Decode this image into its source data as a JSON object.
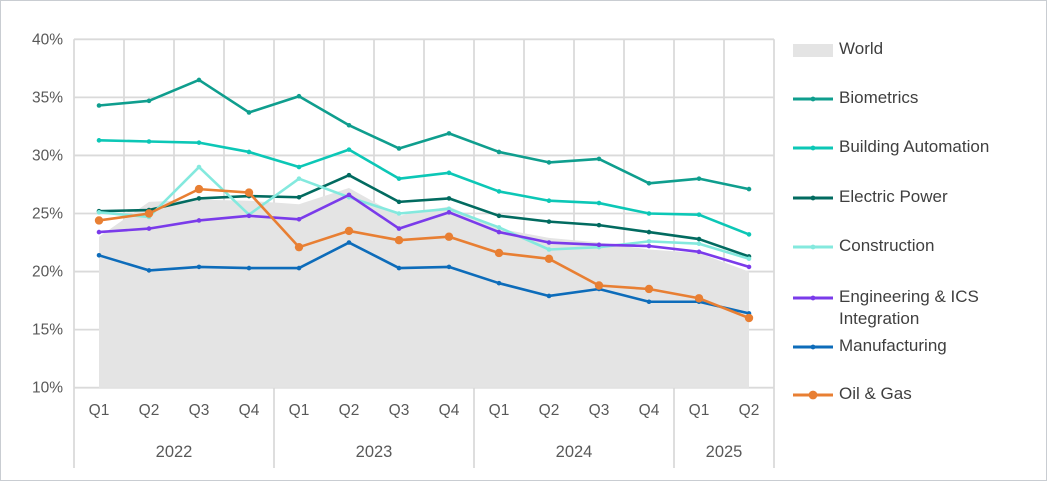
{
  "frame": {
    "background": "#ffffff",
    "border_color": "#c9cdd2"
  },
  "colors": {
    "grid": "#dadada",
    "axis_text": "#595959",
    "legend_text": "#3f3f3f",
    "world_fill": "#e4e4e4"
  },
  "chart_data": {
    "type": "line",
    "title": "",
    "legend_position": "right",
    "grid": true,
    "y_axis": {
      "min": 10,
      "max": 40,
      "step": 5,
      "tick_suffix": "%",
      "tick_labels": [
        "40%",
        "35%",
        "30%",
        "25%",
        "20%",
        "15%",
        "10%"
      ]
    },
    "x_axis": {
      "quarter_labels": [
        "Q1",
        "Q2",
        "Q3",
        "Q4",
        "Q1",
        "Q2",
        "Q3",
        "Q4",
        "Q1",
        "Q2",
        "Q3",
        "Q4",
        "Q1",
        "Q2"
      ],
      "year_groups": [
        {
          "label": "2022",
          "quarters": 4
        },
        {
          "label": "2023",
          "quarters": 4
        },
        {
          "label": "2024",
          "quarters": 4
        },
        {
          "label": "2025",
          "quarters": 2
        }
      ]
    },
    "series": [
      {
        "name": "World",
        "type": "area",
        "color": "#e4e4e4",
        "values": [
          23.0,
          26.0,
          26.2,
          26.1,
          25.8,
          27.2,
          24.8,
          25.6,
          23.7,
          22.9,
          22.5,
          21.9,
          21.6,
          20.0
        ]
      },
      {
        "name": "Electric Power",
        "type": "line",
        "color": "#026b60",
        "marker": "small",
        "values": [
          25.2,
          25.3,
          26.3,
          26.5,
          26.4,
          28.3,
          26.0,
          26.3,
          24.8,
          24.3,
          24.0,
          23.4,
          22.8,
          21.3
        ]
      },
      {
        "name": "Biometrics",
        "type": "line",
        "color": "#0f9e8e",
        "marker": "small",
        "values": [
          34.3,
          34.7,
          36.5,
          33.7,
          35.1,
          32.6,
          30.6,
          31.9,
          30.3,
          29.4,
          29.7,
          27.6,
          28.0,
          27.1
        ]
      },
      {
        "name": "Building Automation",
        "type": "line",
        "color": "#0cc7b6",
        "marker": "small",
        "values": [
          31.3,
          31.2,
          31.1,
          30.3,
          29.0,
          30.5,
          28.0,
          28.5,
          26.9,
          26.1,
          25.9,
          25.0,
          24.9,
          23.2
        ]
      },
      {
        "name": "Construction",
        "type": "line",
        "color": "#84e9de",
        "marker": "small",
        "values": [
          25.1,
          24.7,
          29.0,
          24.9,
          28.0,
          26.4,
          25.0,
          25.4,
          23.8,
          21.9,
          22.1,
          22.6,
          22.4,
          21.1
        ]
      },
      {
        "name": "Engineering & ICS Integration",
        "type": "line",
        "color": "#7a3bea",
        "marker": "small",
        "values": [
          23.4,
          23.7,
          24.4,
          24.8,
          24.5,
          26.6,
          23.7,
          25.1,
          23.4,
          22.5,
          22.3,
          22.2,
          21.7,
          20.4
        ]
      },
      {
        "name": "Manufacturing",
        "type": "line",
        "color": "#0d6cba",
        "marker": "small",
        "values": [
          21.4,
          20.1,
          20.4,
          20.3,
          20.3,
          22.5,
          20.3,
          20.4,
          19.0,
          17.9,
          18.5,
          17.4,
          17.4,
          16.4
        ]
      },
      {
        "name": "Oil & Gas",
        "type": "line",
        "color": "#e87f33",
        "marker": "large",
        "values": [
          24.4,
          25.0,
          27.1,
          26.8,
          22.1,
          23.5,
          22.7,
          23.0,
          21.6,
          21.1,
          18.8,
          18.5,
          17.7,
          16.0
        ]
      }
    ],
    "legend_order": [
      "World",
      "Biometrics",
      "Building Automation",
      "Electric Power",
      "Construction",
      "Engineering & ICS Integration",
      "Manufacturing",
      "Oil & Gas"
    ]
  }
}
